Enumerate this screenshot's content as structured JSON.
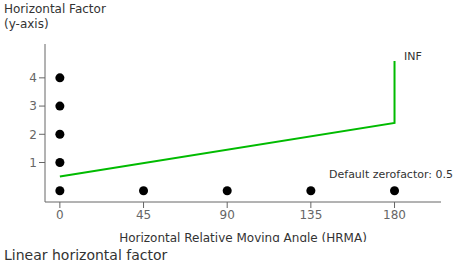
{
  "chart_data": {
    "type": "line",
    "title": "Linear horizontal factor",
    "xlabel": "Horizontal Relative Moving Angle (HRMA)",
    "ylabel": [
      "Horizontal Factor",
      "(y-axis)"
    ],
    "annotations": [
      "Default zerofactor: 0.5",
      "INF"
    ],
    "xlim": [
      -8,
      205
    ],
    "ylim": [
      -0.4,
      5.2
    ],
    "xticks": [
      0,
      45,
      90,
      135,
      180
    ],
    "yticks": [
      1,
      2,
      3,
      4
    ],
    "series": [
      {
        "type": "line",
        "color": "#00bb00",
        "x": [
          0,
          180,
          180
        ],
        "values": [
          0.5,
          2.4,
          4.6
        ]
      },
      {
        "type": "scatter",
        "color": "black",
        "marker": "circle",
        "x": [
          0,
          0,
          0,
          0,
          0,
          45,
          90,
          135,
          180
        ],
        "values": [
          1,
          2,
          3,
          4,
          0,
          0,
          0,
          0,
          0
        ]
      }
    ]
  }
}
